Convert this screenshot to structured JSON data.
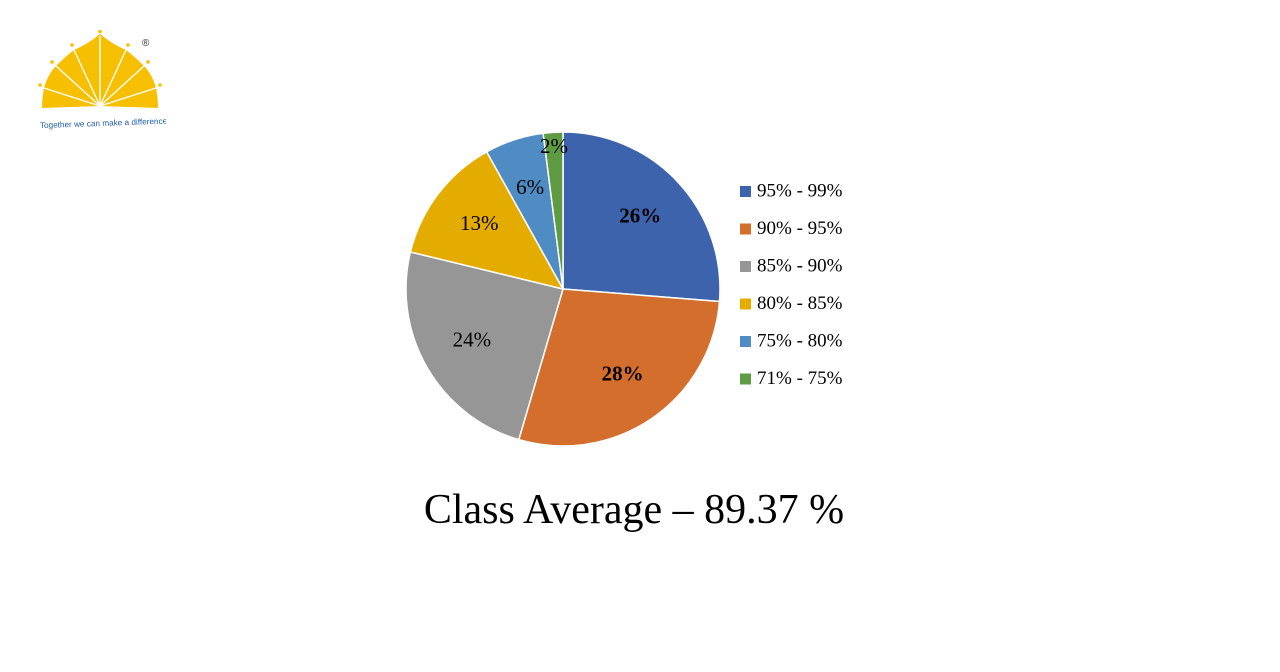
{
  "logo": {
    "tagline": "Together we can make a difference",
    "registered_mark": "®",
    "color": "#f6bf00",
    "tagline_color": "#1f5fa8"
  },
  "chart_data": {
    "type": "pie",
    "title": "",
    "legend_position": "right",
    "slices": [
      {
        "label": "95% - 99%",
        "value": 26,
        "display": "26%",
        "color": "#3d63ad",
        "bold": true
      },
      {
        "label": "90% - 95%",
        "value": 28,
        "display": "28%",
        "color": "#d36e2c",
        "bold": true
      },
      {
        "label": "85% - 90%",
        "value": 24,
        "display": "24%",
        "color": "#969696",
        "bold": false
      },
      {
        "label": "80% - 85%",
        "value": 13,
        "display": "13%",
        "color": "#e5ac00",
        "bold": false
      },
      {
        "label": "75% - 80%",
        "value": 6,
        "display": "6%",
        "color": "#4f8cc3",
        "bold": false
      },
      {
        "label": "71% - 75%",
        "value": 2,
        "display": "2%",
        "color": "#5e9b42",
        "bold": false
      }
    ]
  },
  "footer": {
    "average_text": "Class Average – 89.37 %"
  }
}
